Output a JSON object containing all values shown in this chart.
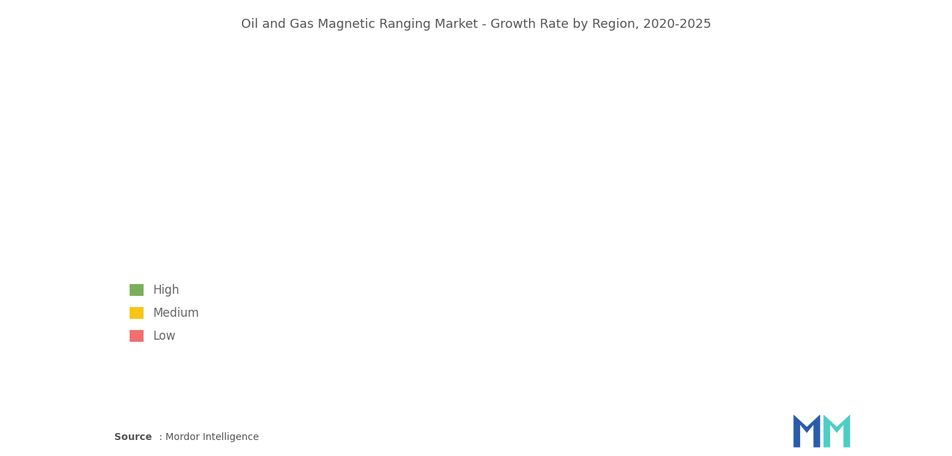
{
  "title": "Oil and Gas Magnetic Ranging Market - Growth Rate by Region, 2020-2025",
  "title_fontsize": 13,
  "background_color": "#ffffff",
  "legend_items": [
    {
      "label": "High",
      "color": "#7aaf5a"
    },
    {
      "label": "Medium",
      "color": "#f5c518"
    },
    {
      "label": "Low",
      "color": "#f07070"
    }
  ],
  "source_bold": "Source",
  "source_rest": " : Mordor Intelligence",
  "country_colors": {
    "USA": "#7aaf5a",
    "Canada": "#7aaf5a",
    "Mexico": "#7aaf5a",
    "Brazil": "#f5c518",
    "Argentina": "#f5c518",
    "Colombia": "#f5c518",
    "Venezuela": "#f5c518",
    "Peru": "#f5c518",
    "Chile": "#f5c518",
    "Bolivia": "#f5c518",
    "Paraguay": "#f5c518",
    "Uruguay": "#f5c518",
    "Ecuador": "#f5c518",
    "Guyana": "#f5c518",
    "Suriname": "#f5c518",
    "Russia": "#f5c518",
    "China": "#f5c518",
    "India": "#f5c518",
    "Japan": "#f5c518",
    "South Korea": "#f5c518",
    "North Korea": "#f5c518",
    "Mongolia": "#f5c518",
    "Kazakhstan": "#f5c518",
    "Uzbekistan": "#f5c518",
    "Turkmenistan": "#f5c518",
    "Tajikistan": "#f5c518",
    "Kyrgyzstan": "#f5c518",
    "Afghanistan": "#f5c518",
    "Pakistan": "#f5c518",
    "Bangladesh": "#f5c518",
    "Sri Lanka": "#f5c518",
    "Nepal": "#f5c518",
    "Myanmar": "#f5c518",
    "Thailand": "#f5c518",
    "Vietnam": "#f5c518",
    "Cambodia": "#f5c518",
    "Laos": "#f5c518",
    "Malaysia": "#f5c518",
    "Indonesia": "#f5c518",
    "Philippines": "#f5c518",
    "Azerbaijan": "#f5c518",
    "Georgia": "#f5c518",
    "Armenia": "#f5c518",
    "Ukraine": "#f5c518",
    "Belarus": "#f5c518",
    "Moldova": "#f5c518",
    "Lithuania": "#f5c518",
    "Latvia": "#f5c518",
    "Estonia": "#f5c518",
    "Finland": "#f5c518",
    "Sweden": "#f5c518",
    "Norway": "#f5c518",
    "Denmark": "#f5c518",
    "Iceland": "#f5c518",
    "United Kingdom": "#f5c518",
    "Ireland": "#f5c518",
    "France": "#f5c518",
    "Germany": "#f5c518",
    "Netherlands": "#f5c518",
    "Belgium": "#f5c518",
    "Switzerland": "#f5c518",
    "Austria": "#f5c518",
    "Spain": "#f5c518",
    "Portugal": "#f5c518",
    "Italy": "#f5c518",
    "Greece": "#f5c518",
    "Poland": "#f5c518",
    "Czech Rep.": "#f5c518",
    "Slovakia": "#f5c518",
    "Hungary": "#f5c518",
    "Romania": "#f5c518",
    "Bulgaria": "#f5c518",
    "Serbia": "#f5c518",
    "Croatia": "#f5c518",
    "Slovenia": "#f5c518",
    "Bosnia and Herz.": "#f5c518",
    "Montenegro": "#f5c518",
    "Albania": "#f5c518",
    "Macedonia": "#f5c518",
    "Turkey": "#f5c518",
    "Iran": "#f07070",
    "Iraq": "#f07070",
    "Saudi Arabia": "#f07070",
    "Yemen": "#f07070",
    "Oman": "#f07070",
    "United Arab Emirates": "#f07070",
    "Qatar": "#f07070",
    "Bahrain": "#f07070",
    "Kuwait": "#f07070",
    "Jordan": "#f07070",
    "Lebanon": "#f07070",
    "Israel": "#f07070",
    "Syria": "#f07070",
    "Egypt": "#f07070",
    "Libya": "#f07070",
    "Tunisia": "#f07070",
    "Algeria": "#f07070",
    "Morocco": "#f07070",
    "W. Sahara": "#f07070",
    "Mauritania": "#f07070",
    "Mali": "#f07070",
    "Niger": "#f07070",
    "Chad": "#f07070",
    "Sudan": "#f07070",
    "S. Sudan": "#f07070",
    "Ethiopia": "#f07070",
    "Eritrea": "#f07070",
    "Djibouti": "#f07070",
    "Somalia": "#f07070",
    "Kenya": "#f07070",
    "Uganda": "#f07070",
    "Rwanda": "#f07070",
    "Burundi": "#f07070",
    "Tanzania": "#f07070",
    "Mozambique": "#f07070",
    "Madagascar": "#f07070",
    "Zimbabwe": "#f07070",
    "Zambia": "#f07070",
    "Malawi": "#f07070",
    "Botswana": "#f07070",
    "Namibia": "#f07070",
    "South Africa": "#f07070",
    "Lesotho": "#f07070",
    "Swaziland": "#f07070",
    "Angola": "#f07070",
    "Dem. Rep. Congo": "#f07070",
    "Congo": "#f07070",
    "Gabon": "#f07070",
    "Cameroon": "#f07070",
    "Central African Rep.": "#f07070",
    "Eq. Guinea": "#f07070",
    "Nigeria": "#f07070",
    "Benin": "#f07070",
    "Togo": "#f07070",
    "Ghana": "#f07070",
    "Ivory Coast": "#f07070",
    "Burkina Faso": "#f07070",
    "Liberia": "#f07070",
    "Sierra Leone": "#f07070",
    "Guinea": "#f07070",
    "Guinea-Bissau": "#f07070",
    "Gambia": "#f07070",
    "Senegal": "#f07070",
    "Australia": "#b8b8b8",
    "New Zealand": "#b8b8b8",
    "Papua New Guinea": "#b8b8b8",
    "Greenland": "#c0c0c0"
  },
  "default_color": "#cccccc",
  "border_color": "#ffffff",
  "border_width": 0.4,
  "ocean_color": "#d6eaf5",
  "figsize": [
    13.66,
    6.55
  ],
  "dpi": 100
}
